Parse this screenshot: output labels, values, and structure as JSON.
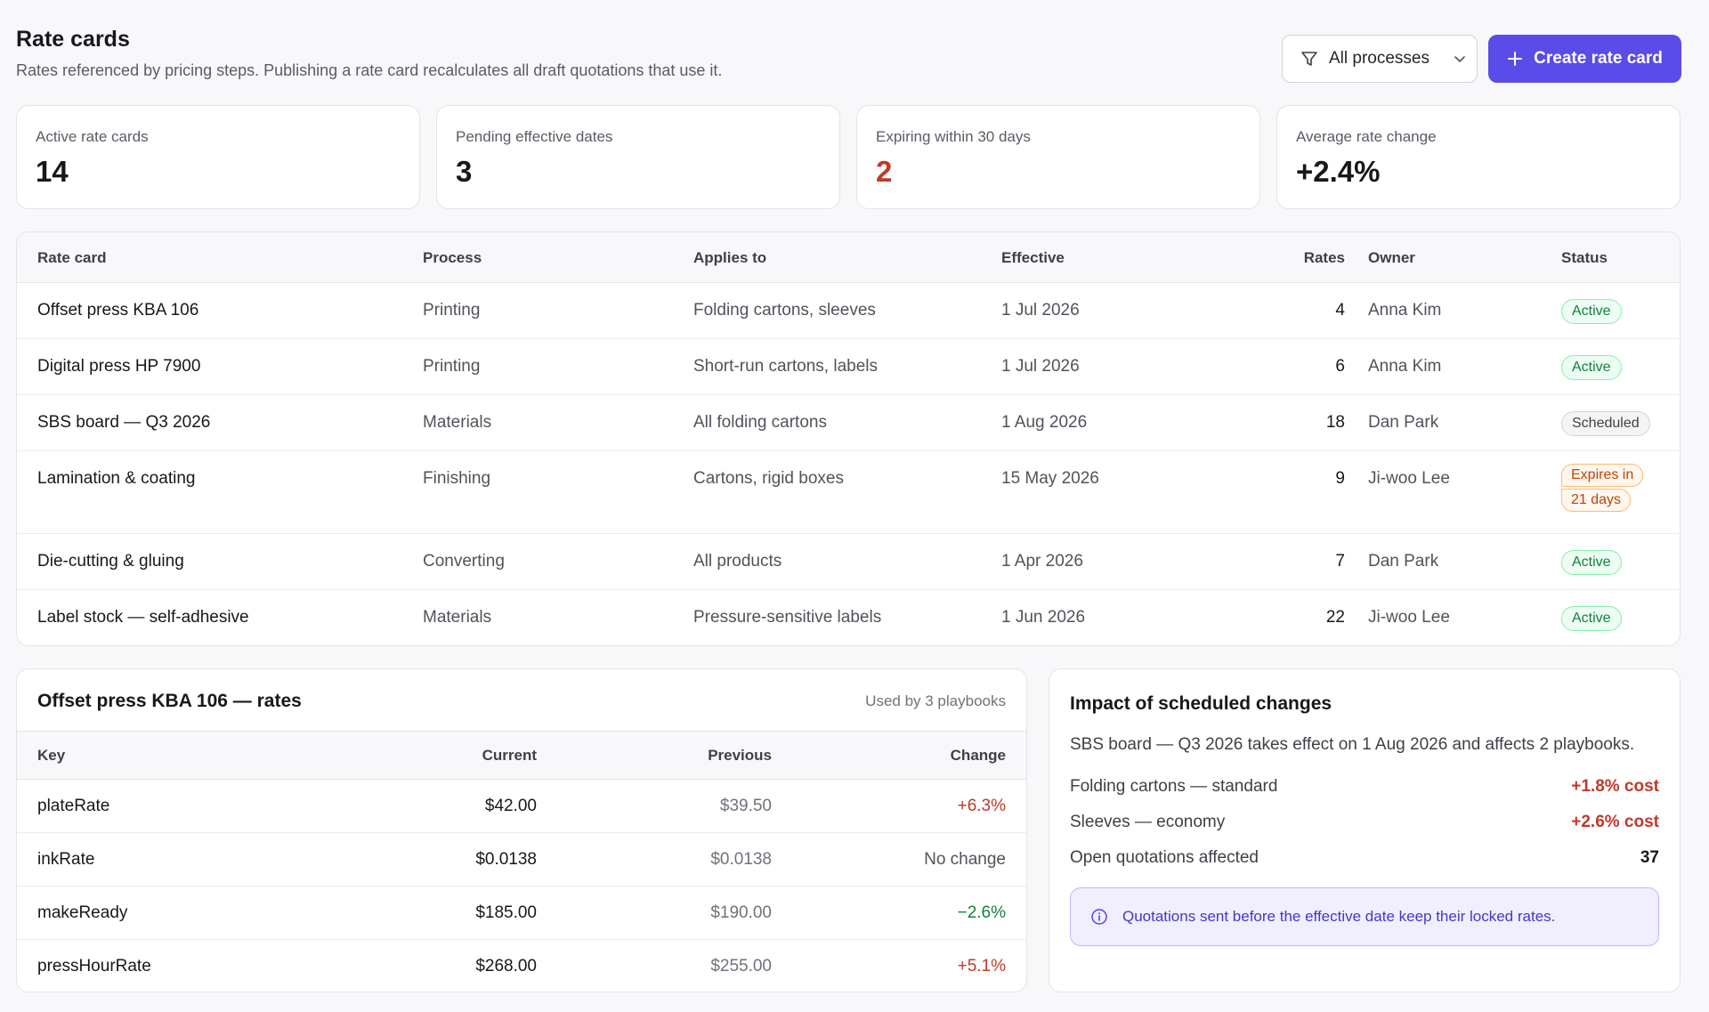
{
  "header": {
    "title": "Rate cards",
    "subtitle": "Rates referenced by pricing steps. Publishing a rate card recalculates all draft quotations that use it.",
    "filter_label": "All processes",
    "create_label": "Create rate card"
  },
  "stats": [
    {
      "label": "Active rate cards",
      "value": "14"
    },
    {
      "label": "Pending effective dates",
      "value": "3"
    },
    {
      "label": "Expiring within 30 days",
      "value": "2"
    },
    {
      "label": "Average rate change",
      "value": "+2.4%"
    }
  ],
  "rate_cards": {
    "columns": [
      "Rate card",
      "Process",
      "Applies to",
      "Effective",
      "Rates",
      "Owner",
      "Status"
    ],
    "rows": [
      {
        "name": "Offset press KBA 106",
        "process": "Printing",
        "applies": "Folding cartons, sleeves",
        "effective": "1 Jul 2026",
        "rates": "4",
        "owner": "Anna Kim",
        "status": "Active"
      },
      {
        "name": "Digital press HP 7900",
        "process": "Printing",
        "applies": "Short-run cartons, labels",
        "effective": "1 Jul 2026",
        "rates": "6",
        "owner": "Anna Kim",
        "status": "Active"
      },
      {
        "name": "SBS board — Q3 2026",
        "process": "Materials",
        "applies": "All folding cartons",
        "effective": "1 Aug 2026",
        "rates": "18",
        "owner": "Dan Park",
        "status": "Scheduled"
      },
      {
        "name": "Lamination & coating",
        "process": "Finishing",
        "applies": "Cartons, rigid boxes",
        "effective": "15 May 2026",
        "rates": "9",
        "owner": "Ji-woo Lee",
        "status_line1": "Expires in",
        "status_line2": "21 days"
      },
      {
        "name": "Die-cutting & gluing",
        "process": "Converting",
        "applies": "All products",
        "effective": "1 Apr 2026",
        "rates": "7",
        "owner": "Dan Park",
        "status": "Active"
      },
      {
        "name": "Label stock — self-adhesive",
        "process": "Materials",
        "applies": "Pressure-sensitive labels",
        "effective": "1 Jun 2026",
        "rates": "22",
        "owner": "Ji-woo Lee",
        "status": "Active"
      }
    ]
  },
  "rates_panel": {
    "title": "Offset press KBA 106 — rates",
    "used_by": "Used by 3 playbooks",
    "columns": [
      "Key",
      "Current",
      "Previous",
      "Change"
    ],
    "rows": [
      {
        "key": "plateRate",
        "current": "$42.00",
        "previous": "$39.50",
        "change": "+6.3%"
      },
      {
        "key": "inkRate",
        "current": "$0.0138",
        "previous": "$0.0138",
        "change": "No change"
      },
      {
        "key": "makeReady",
        "current": "$185.00",
        "previous": "$190.00",
        "change": "−2.6%"
      },
      {
        "key": "pressHourRate",
        "current": "$268.00",
        "previous": "$255.00",
        "change": "+5.1%"
      }
    ]
  },
  "impact": {
    "title": "Impact of scheduled changes",
    "description": "SBS board — Q3 2026 takes effect on 1 Aug 2026 and affects 2 playbooks.",
    "items": [
      {
        "label": "Folding cartons — standard",
        "value": "+1.8% cost"
      },
      {
        "label": "Sleeves — economy",
        "value": "+2.6% cost"
      },
      {
        "label": "Open quotations affected",
        "value": "37"
      }
    ],
    "note": "Quotations sent before the effective date keep their locked rates."
  },
  "colors": {
    "accent": "#5b4be8",
    "danger": "#c0392b",
    "success": "#15803d"
  }
}
